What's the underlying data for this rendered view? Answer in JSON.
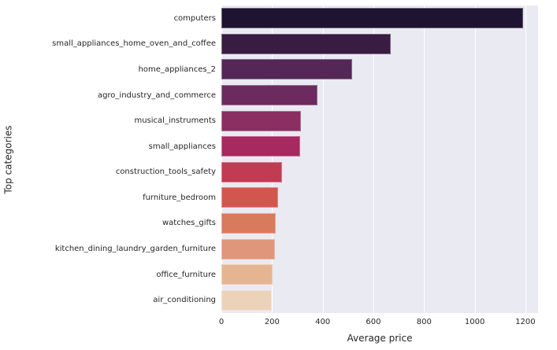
{
  "figure": {
    "background": "#ffffff",
    "plot_background": "#eaeaf2",
    "grid_color": "#ffffff",
    "text_color": "#262626"
  },
  "chart_data": {
    "type": "bar",
    "orientation": "horizontal",
    "title": "",
    "xlabel": "Average price",
    "ylabel": "Top categories",
    "xlim": [
      0,
      1250
    ],
    "x_ticks": [
      0,
      200,
      400,
      600,
      800,
      1000,
      1200
    ],
    "grid": true,
    "legend": false,
    "categories": [
      "computers",
      "small_appliances_home_oven_and_coffee",
      "home_appliances_2",
      "agro_industry_and_commerce",
      "musical_instruments",
      "small_appliances",
      "construction_tools_safety",
      "furniture_bedroom",
      "watches_gifts",
      "kitchen_dining_laundry_garden_furniture",
      "office_furniture",
      "air_conditioning"
    ],
    "values": [
      1190,
      670,
      515,
      380,
      315,
      310,
      240,
      225,
      215,
      210,
      202,
      198
    ],
    "bar_colors": [
      "#1e1330",
      "#381c42",
      "#542757",
      "#6c2b5e",
      "#8b2e62",
      "#a62960",
      "#c13b53",
      "#d1574e",
      "#d87a5d",
      "#e0967b",
      "#e5b591",
      "#edd2ba"
    ]
  }
}
